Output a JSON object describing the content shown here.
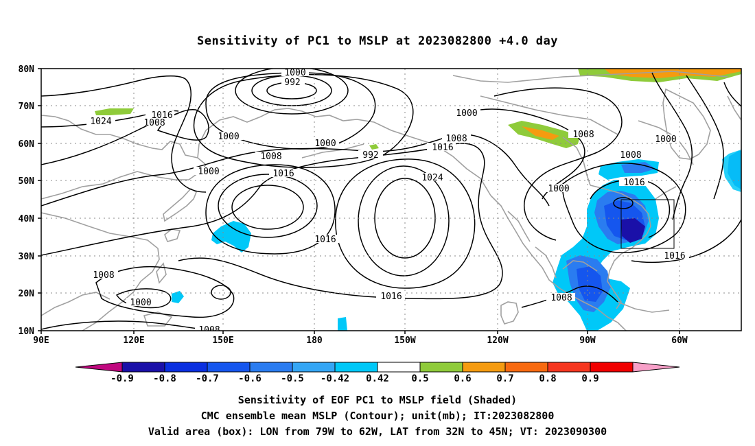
{
  "title": "Sensitivity of PC1 to MSLP at 2023082800 +4.0 day",
  "lat_labels": [
    "80N",
    "70N",
    "60N",
    "50N",
    "40N",
    "30N",
    "20N",
    "10N"
  ],
  "lon_labels": [
    "90E",
    "120E",
    "150E",
    "180",
    "150W",
    "120W",
    "90W",
    "60W"
  ],
  "contour_labels": [
    "1000",
    "992",
    "1000",
    "1024",
    "1016",
    "1008",
    "1000",
    "1000",
    "992",
    "1008",
    "1000",
    "1008",
    "1016",
    "1000",
    "1016",
    "1024",
    "1008",
    "1016",
    "1016",
    "1008",
    "1000",
    "1016",
    "1008",
    "1016",
    "1008",
    "1000",
    "1008"
  ],
  "colorbar": {
    "labels": [
      "-0.9",
      "-0.8",
      "-0.7",
      "-0.6",
      "-0.5",
      "-0.42",
      "0.42",
      "0.5",
      "0.6",
      "0.7",
      "0.8",
      "0.9"
    ],
    "colors": [
      "#c0087f",
      "#1a10a8",
      "#0a2fe0",
      "#1556ee",
      "#2a7cf0",
      "#34a6f5",
      "#00c8f8",
      "#ffffff",
      "#8fcb3a",
      "#f59b10",
      "#f86a10",
      "#f6361f",
      "#f00000",
      "#f7a0c8"
    ]
  },
  "valid_box": {
    "lon_from": "79W",
    "lon_to": "62W",
    "lat_from": "32N",
    "lat_to": "45N"
  },
  "captions": {
    "line1": "Sensitivity of EOF PC1 to MSLP field (Shaded)",
    "line2": "CMC ensemble mean MSLP (Contour); unit(mb); IT:2023082800",
    "line3": "Valid area (box): LON from 79W to 62W, LAT from 32N to 45N; VT: 2023090300"
  }
}
